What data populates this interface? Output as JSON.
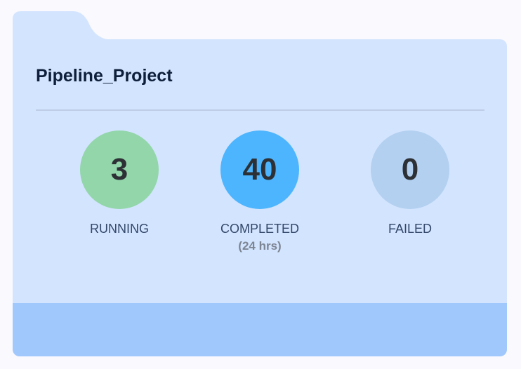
{
  "project": {
    "title": "Pipeline_Project"
  },
  "stats": [
    {
      "value": "3",
      "label": "RUNNING",
      "color": "#92d6aa"
    },
    {
      "value": "40",
      "label": "COMPLETED",
      "sublabel": "(24 hrs)",
      "color": "#4db5fd"
    },
    {
      "value": "0",
      "label": "FAILED",
      "color": "#b3d0f1"
    }
  ],
  "colors": {
    "card": "#d3e4fe",
    "footer": "#a1c8fd",
    "background": "#f9f9fe"
  }
}
